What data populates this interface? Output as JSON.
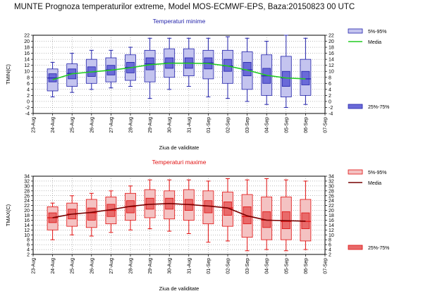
{
  "page": {
    "title": "MUNTE  Prognoza temperaturilor extreme,  Model MOS-ECMWF-EPS, Baza:20150823 00 UTC"
  },
  "chart_data": [
    {
      "type": "box",
      "title": "Temperaturi minime",
      "ylabel": "TMIN(C)",
      "xlabel": "Ziua de validitate",
      "ylim": [
        -4,
        22
      ],
      "yticks": [
        -4,
        -2,
        0,
        2,
        4,
        6,
        8,
        10,
        12,
        14,
        16,
        18,
        20,
        22
      ],
      "categories": [
        "23-Aug",
        "24-Aug",
        "25-Aug",
        "26-Aug",
        "27-Aug",
        "28-Aug",
        "29-Aug",
        "30-Aug",
        "31-Aug",
        "01-Sep",
        "02-Sep",
        "03-Sep",
        "04-Sep",
        "05-Sep",
        "06-Sep",
        "07-Sep"
      ],
      "grid": true,
      "colors": {
        "box_outer": "#c4c4ef",
        "box_inner": "#6a6ad8",
        "edge": "#2222aa",
        "median_line": "#22cc22",
        "grid": "#777777"
      },
      "legend": {
        "position": "right",
        "items": [
          "5%-95%",
          "Media",
          "25%-75%"
        ]
      },
      "boxes": [
        {
          "x": "24-Aug",
          "min": 1.5,
          "p5": 3.5,
          "p25": 6.5,
          "median": 7.8,
          "p75": 9.2,
          "p95": 10.8,
          "max": 13.0
        },
        {
          "x": "25-Aug",
          "min": 3.0,
          "p5": 5.0,
          "p25": 7.5,
          "median": 9.3,
          "p75": 10.8,
          "p95": 12.5,
          "max": 16.0
        },
        {
          "x": "26-Aug",
          "min": 4.0,
          "p5": 6.0,
          "p25": 8.3,
          "median": 9.8,
          "p75": 11.5,
          "p95": 14.0,
          "max": 17.0
        },
        {
          "x": "27-Aug",
          "min": 4.5,
          "p5": 6.5,
          "p25": 8.8,
          "median": 10.5,
          "p75": 12.0,
          "p95": 14.5,
          "max": 17.0
        },
        {
          "x": "28-Aug",
          "min": 5.0,
          "p5": 7.0,
          "p25": 9.5,
          "median": 11.3,
          "p75": 13.0,
          "p95": 15.5,
          "max": 18.0
        },
        {
          "x": "29-Aug",
          "min": 1.0,
          "p5": 6.5,
          "p25": 10.5,
          "median": 12.5,
          "p75": 14.5,
          "p95": 17.0,
          "max": 21.0
        },
        {
          "x": "30-Aug",
          "min": 4.0,
          "p5": 8.0,
          "p25": 11.0,
          "median": 12.8,
          "p75": 14.5,
          "p95": 17.5,
          "max": 21.0
        },
        {
          "x": "31-Aug",
          "min": 5.0,
          "p5": 8.5,
          "p25": 11.0,
          "median": 12.8,
          "p75": 14.5,
          "p95": 17.5,
          "max": 21.0
        },
        {
          "x": "01-Sep",
          "min": 1.5,
          "p5": 7.5,
          "p25": 10.8,
          "median": 12.8,
          "p75": 14.5,
          "p95": 17.0,
          "max": 21.0
        },
        {
          "x": "02-Sep",
          "min": 1.0,
          "p5": 6.0,
          "p25": 10.0,
          "median": 11.8,
          "p75": 14.0,
          "p95": 17.0,
          "max": 21.5
        },
        {
          "x": "03-Sep",
          "min": 0.0,
          "p5": 4.0,
          "p25": 8.5,
          "median": 10.5,
          "p75": 13.0,
          "p95": 16.5,
          "max": 21.0
        },
        {
          "x": "04-Sep",
          "min": -1.0,
          "p5": 2.0,
          "p25": 6.0,
          "median": 8.5,
          "p75": 11.0,
          "p95": 15.5,
          "max": 20.0
        },
        {
          "x": "05-Sep",
          "min": -2.0,
          "p5": 1.5,
          "p25": 5.0,
          "median": 7.8,
          "p75": 10.0,
          "p95": 15.0,
          "max": 22.0
        },
        {
          "x": "06-Sep",
          "min": -1.0,
          "p5": 2.0,
          "p25": 5.5,
          "median": 7.5,
          "p75": 10.0,
          "p95": 14.0,
          "max": 21.0
        }
      ],
      "mean_line": [
        7.2,
        9.2,
        9.8,
        10.4,
        11.2,
        12.2,
        12.7,
        12.7,
        12.6,
        11.8,
        10.4,
        8.7,
        7.8,
        7.5
      ]
    },
    {
      "type": "box",
      "title": "Temperaturi maxime",
      "ylabel": "TMAX(C)",
      "xlabel": "Ziua de validitate",
      "ylim": [
        2,
        34
      ],
      "yticks": [
        2,
        4,
        6,
        8,
        10,
        12,
        14,
        16,
        18,
        20,
        22,
        24,
        26,
        28,
        30,
        32,
        34
      ],
      "categories": [
        "23-Aug",
        "24-Aug",
        "25-Aug",
        "26-Aug",
        "27-Aug",
        "28-Aug",
        "29-Aug",
        "30-Aug",
        "31-Aug",
        "01-Sep",
        "02-Sep",
        "03-Sep",
        "04-Sep",
        "05-Sep",
        "06-Sep",
        "07-Sep"
      ],
      "grid": true,
      "colors": {
        "box_outer": "#f4c2c2",
        "box_inner": "#e86a6a",
        "edge": "#e01010",
        "median_line": "#770000",
        "grid": "#777777"
      },
      "legend": {
        "position": "right",
        "items": [
          "5%-95%",
          "Media",
          "25%-75%"
        ]
      },
      "boxes": [
        {
          "x": "24-Aug",
          "min": 8.0,
          "p5": 12.0,
          "p25": 15.0,
          "median": 17.0,
          "p75": 19.0,
          "p95": 21.5,
          "max": 23.0
        },
        {
          "x": "25-Aug",
          "min": 10.0,
          "p5": 13.5,
          "p25": 16.5,
          "median": 18.5,
          "p75": 20.5,
          "p95": 23.0,
          "max": 26.0
        },
        {
          "x": "26-Aug",
          "min": 9.5,
          "p5": 13.0,
          "p25": 16.0,
          "median": 19.0,
          "p75": 21.0,
          "p95": 24.5,
          "max": 27.0
        },
        {
          "x": "27-Aug",
          "min": 11.0,
          "p5": 14.5,
          "p25": 17.5,
          "median": 20.0,
          "p75": 22.5,
          "p95": 25.5,
          "max": 28.0
        },
        {
          "x": "28-Aug",
          "min": 12.0,
          "p5": 16.0,
          "p25": 19.0,
          "median": 21.5,
          "p75": 24.0,
          "p95": 27.0,
          "max": 30.0
        },
        {
          "x": "29-Aug",
          "min": 12.5,
          "p5": 17.0,
          "p25": 20.5,
          "median": 22.5,
          "p75": 25.0,
          "p95": 28.5,
          "max": 32.5
        },
        {
          "x": "30-Aug",
          "min": 11.5,
          "p5": 16.5,
          "p25": 20.5,
          "median": 22.8,
          "p75": 25.0,
          "p95": 28.0,
          "max": 32.5
        },
        {
          "x": "31-Aug",
          "min": 10.5,
          "p5": 16.0,
          "p25": 20.0,
          "median": 22.5,
          "p75": 24.5,
          "p95": 28.5,
          "max": 32.5
        },
        {
          "x": "01-Sep",
          "min": 7.0,
          "p5": 14.5,
          "p25": 19.0,
          "median": 21.8,
          "p75": 24.0,
          "p95": 28.0,
          "max": 32.0
        },
        {
          "x": "02-Sep",
          "min": 7.5,
          "p5": 13.5,
          "p25": 18.0,
          "median": 21.0,
          "p75": 23.5,
          "p95": 27.5,
          "max": 33.0
        },
        {
          "x": "03-Sep",
          "min": 3.5,
          "p5": 9.0,
          "p25": 14.5,
          "median": 17.5,
          "p75": 21.5,
          "p95": 26.5,
          "max": 32.5
        },
        {
          "x": "04-Sep",
          "min": 4.0,
          "p5": 8.0,
          "p25": 13.0,
          "median": 16.0,
          "p75": 19.5,
          "p95": 25.5,
          "max": 33.0
        },
        {
          "x": "05-Sep",
          "min": 3.5,
          "p5": 8.0,
          "p25": 12.5,
          "median": 15.5,
          "p75": 19.5,
          "p95": 25.5,
          "max": 32.5
        },
        {
          "x": "06-Sep",
          "min": 4.0,
          "p5": 7.5,
          "p25": 12.5,
          "median": 15.5,
          "p75": 19.0,
          "p95": 24.5,
          "max": 32.0
        }
      ],
      "mean_line": [
        17.0,
        18.5,
        19.2,
        20.3,
        21.7,
        22.5,
        22.8,
        22.4,
        21.8,
        21.0,
        17.8,
        16.0,
        15.8,
        15.6
      ]
    }
  ]
}
